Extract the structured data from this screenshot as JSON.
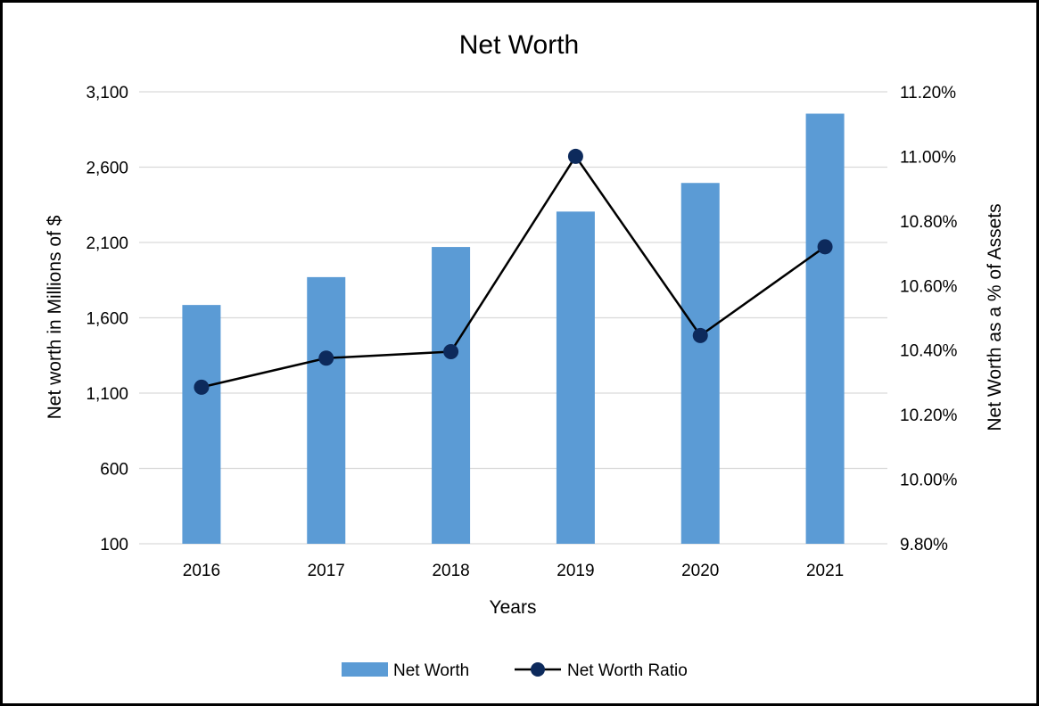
{
  "chart_data": {
    "type": "bar",
    "title": "Net Worth",
    "xlabel": "Years",
    "ylabel": "Net worth in Millions of $",
    "y2label": "Net Worth as a % of Assets",
    "categories": [
      "2016",
      "2017",
      "2018",
      "2019",
      "2020",
      "2021"
    ],
    "ylim": [
      100,
      3100
    ],
    "yticks": [
      "100",
      "600",
      "1,100",
      "1,600",
      "2,100",
      "2,600",
      "3,100"
    ],
    "y2lim": [
      9.8,
      11.2
    ],
    "y2ticks": [
      "9.80%",
      "10.00%",
      "10.20%",
      "10.40%",
      "10.60%",
      "10.80%",
      "11.00%",
      "11.20%"
    ],
    "grid": true,
    "legend_position": "bottom",
    "series": [
      {
        "name": "Net Worth",
        "type": "bar",
        "axis": "left",
        "color": "#5b9bd5",
        "values": [
          1685,
          1870,
          2070,
          2305,
          2495,
          2955
        ]
      },
      {
        "name": "Net Worth Ratio",
        "type": "line",
        "axis": "right",
        "color": "#000000",
        "marker_color": "#0d2a5c",
        "values": [
          10.285,
          10.375,
          10.395,
          11.0,
          10.445,
          10.72
        ]
      }
    ]
  }
}
